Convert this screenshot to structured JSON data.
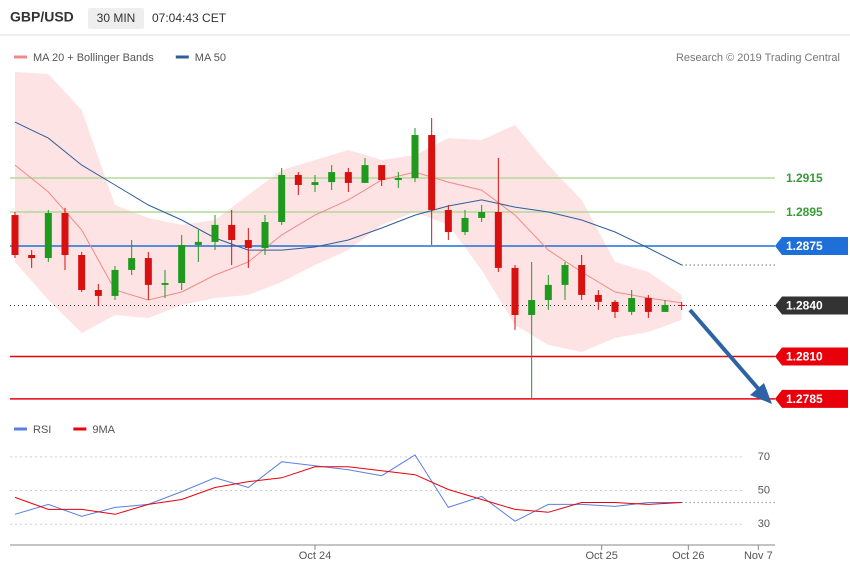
{
  "header": {
    "symbol": "GBP/USD",
    "interval": "30 MIN",
    "time": "07:04:43 CET",
    "credit": "Research © 2019 Trading Central"
  },
  "chart_data": [
    {
      "type": "candlestick",
      "xlim": [
        -0.3,
        45.6
      ],
      "ylim": [
        1.27726,
        1.29815
      ],
      "candles": {
        "x": [
          0,
          1,
          2,
          3,
          4,
          5,
          6,
          7,
          8,
          9,
          10,
          11,
          12,
          13,
          14,
          15,
          16,
          17,
          18,
          19,
          20,
          21,
          22,
          23,
          24,
          25,
          26,
          27,
          28,
          29,
          30,
          31,
          32,
          33,
          34,
          35,
          36,
          37,
          38,
          39,
          40
        ],
        "open": [
          1.28932,
          1.28697,
          1.28679,
          1.28944,
          1.28697,
          1.28491,
          1.28456,
          1.28609,
          1.28679,
          1.28521,
          1.28532,
          1.28756,
          1.28774,
          1.28874,
          1.28785,
          1.28738,
          1.28891,
          1.29168,
          1.29109,
          1.29126,
          1.29185,
          1.29121,
          1.29226,
          1.29138,
          1.2915,
          1.29403,
          1.28962,
          1.28832,
          1.28915,
          1.2895,
          1.28621,
          1.28344,
          1.28432,
          1.28521,
          1.28638,
          1.28462,
          1.28421,
          1.28362,
          1.28444,
          1.28362,
          1.28403
        ],
        "high": [
          1.2895,
          1.28726,
          1.28962,
          1.28974,
          1.28715,
          1.28526,
          1.28632,
          1.28785,
          1.28715,
          1.28609,
          1.28815,
          1.28844,
          1.28932,
          1.28962,
          1.28856,
          1.28932,
          1.29209,
          1.29185,
          1.29168,
          1.29226,
          1.29209,
          1.29268,
          1.29197,
          1.29185,
          1.29444,
          1.29503,
          1.28991,
          1.28962,
          1.28991,
          1.29268,
          1.28638,
          1.28656,
          1.28579,
          1.28656,
          1.28697,
          1.28491,
          1.28432,
          1.28491,
          1.28462,
          1.28432,
          1.28421
        ],
        "low": [
          1.28679,
          1.28621,
          1.28656,
          1.28609,
          1.28479,
          1.28397,
          1.28432,
          1.28579,
          1.28432,
          1.28444,
          1.28491,
          1.28656,
          1.28726,
          1.28638,
          1.28621,
          1.28697,
          1.28874,
          1.2905,
          1.29068,
          1.29079,
          1.29068,
          1.29138,
          1.29103,
          1.29091,
          1.29126,
          1.28756,
          1.28785,
          1.28815,
          1.28891,
          1.28597,
          1.28256,
          1.27856,
          1.28374,
          1.28432,
          1.28432,
          1.28374,
          1.28326,
          1.28344,
          1.28326,
          1.28362,
          1.28374
        ],
        "close": [
          1.28697,
          1.28679,
          1.28944,
          1.28697,
          1.28491,
          1.28456,
          1.28609,
          1.28679,
          1.28521,
          1.28532,
          1.28756,
          1.28774,
          1.28874,
          1.28785,
          1.28738,
          1.28891,
          1.29168,
          1.29109,
          1.29126,
          1.29185,
          1.29121,
          1.29226,
          1.29138,
          1.2915,
          1.29403,
          1.28962,
          1.28832,
          1.28915,
          1.2895,
          1.28621,
          1.28344,
          1.28432,
          1.28521,
          1.28638,
          1.28462,
          1.28421,
          1.28362,
          1.28444,
          1.28362,
          1.28403,
          1.28397
        ],
        "up_color": "#1f9a1f",
        "down_color": "#d81010"
      },
      "line_x": [
        0,
        2,
        4,
        6,
        8,
        10,
        12,
        14,
        16,
        18,
        20,
        22,
        24,
        26,
        28,
        30,
        32,
        34,
        36,
        38,
        40
      ],
      "bands": {
        "upper": [
          1.29774,
          1.29762,
          1.2955,
          1.28991,
          1.28915,
          1.28874,
          1.28903,
          1.2905,
          1.29197,
          1.29256,
          1.29315,
          1.29256,
          1.29285,
          1.29385,
          1.29374,
          1.29462,
          1.29226,
          1.29021,
          1.28656,
          1.28597,
          1.28462
        ],
        "lower": [
          1.28656,
          1.28432,
          1.28238,
          1.28344,
          1.28326,
          1.28403,
          1.28444,
          1.28462,
          1.28538,
          1.28638,
          1.28726,
          1.28874,
          1.2895,
          1.28874,
          1.28609,
          1.28285,
          1.28168,
          1.28126,
          1.28209,
          1.28244,
          1.28315
        ],
        "color": "#fde3e3"
      },
      "series": [
        {
          "name": "MA 20 + Bollinger Bands",
          "color": "#f08a8a",
          "values": [
            1.29226,
            1.29068,
            1.28844,
            1.28491,
            1.28432,
            1.28479,
            1.28579,
            1.28656,
            1.28815,
            1.28932,
            1.29021,
            1.29138,
            1.29185,
            1.29126,
            1.29079,
            1.28932,
            1.28726,
            1.28597,
            1.28479,
            1.28444,
            1.28415
          ]
        },
        {
          "name": "MA 50",
          "color": "#2f5f9e",
          "values": [
            1.29479,
            1.29385,
            1.29226,
            1.29109,
            1.28991,
            1.28903,
            1.28797,
            1.28726,
            1.28726,
            1.28744,
            1.28785,
            1.28856,
            1.28932,
            1.28985,
            1.29021,
            1.28979,
            1.2895,
            1.28903,
            1.28832,
            1.28738,
            1.28638
          ]
        }
      ],
      "levels": [
        {
          "value": 1.2915,
          "color": "#b5d89a",
          "text_color": "#3a9a3a",
          "boxed": false,
          "dotted": false
        },
        {
          "value": 1.2895,
          "color": "#b5d89a",
          "text_color": "#3a9a3a",
          "boxed": false,
          "dotted": false
        },
        {
          "value": 1.2875,
          "color": "#1f6fd8",
          "text_color": "#ffffff",
          "boxed": true,
          "dotted": false
        },
        {
          "value": 1.284,
          "label": "1.2840",
          "color": "#333333",
          "text_color": "#ffffff",
          "boxed": true,
          "dotted": true
        },
        {
          "value": 1.281,
          "label": "1.2810",
          "color": "#e8000b",
          "text_color": "#ffffff",
          "boxed": true,
          "dotted": false
        },
        {
          "value": 1.2785,
          "color": "#e8000b",
          "text_color": "#ffffff",
          "boxed": true,
          "dotted": false
        }
      ]
    },
    {
      "type": "line",
      "xlim": [
        -0.3,
        45.6
      ],
      "ylim": [
        17.65,
        77.06
      ],
      "x": [
        0,
        2,
        4,
        6,
        8,
        10,
        12,
        14,
        16,
        18,
        20,
        22,
        24,
        26,
        28,
        30,
        32,
        34,
        36,
        38,
        40
      ],
      "yticks": [
        30,
        50,
        70
      ],
      "xticks": [
        {
          "value": 18,
          "label": "Oct 24"
        },
        {
          "value": 35.2,
          "label": "Oct 25"
        },
        {
          "value": 40.4,
          "label": "Oct 26"
        },
        {
          "value": 44.6,
          "label": "Nov 7"
        }
      ],
      "grid": true,
      "series": [
        {
          "name": "RSI",
          "color": "#5b7fe0",
          "values": [
            35.9,
            41.8,
            34.7,
            40,
            41.8,
            49.4,
            57.6,
            51.8,
            67.1,
            64.7,
            62.4,
            58.8,
            71.2,
            40,
            46.5,
            31.8,
            41.8,
            41.8,
            40.6,
            42.9,
            42.9
          ]
        },
        {
          "name": "9MA",
          "color": "#e8000b",
          "values": [
            45.9,
            38.8,
            38.8,
            35.9,
            41.8,
            44.7,
            51.8,
            55.3,
            57.6,
            64.1,
            64.1,
            61.8,
            59.4,
            50.6,
            44.7,
            38.8,
            37.1,
            42.9,
            42.9,
            41.8,
            42.9
          ]
        }
      ]
    }
  ]
}
